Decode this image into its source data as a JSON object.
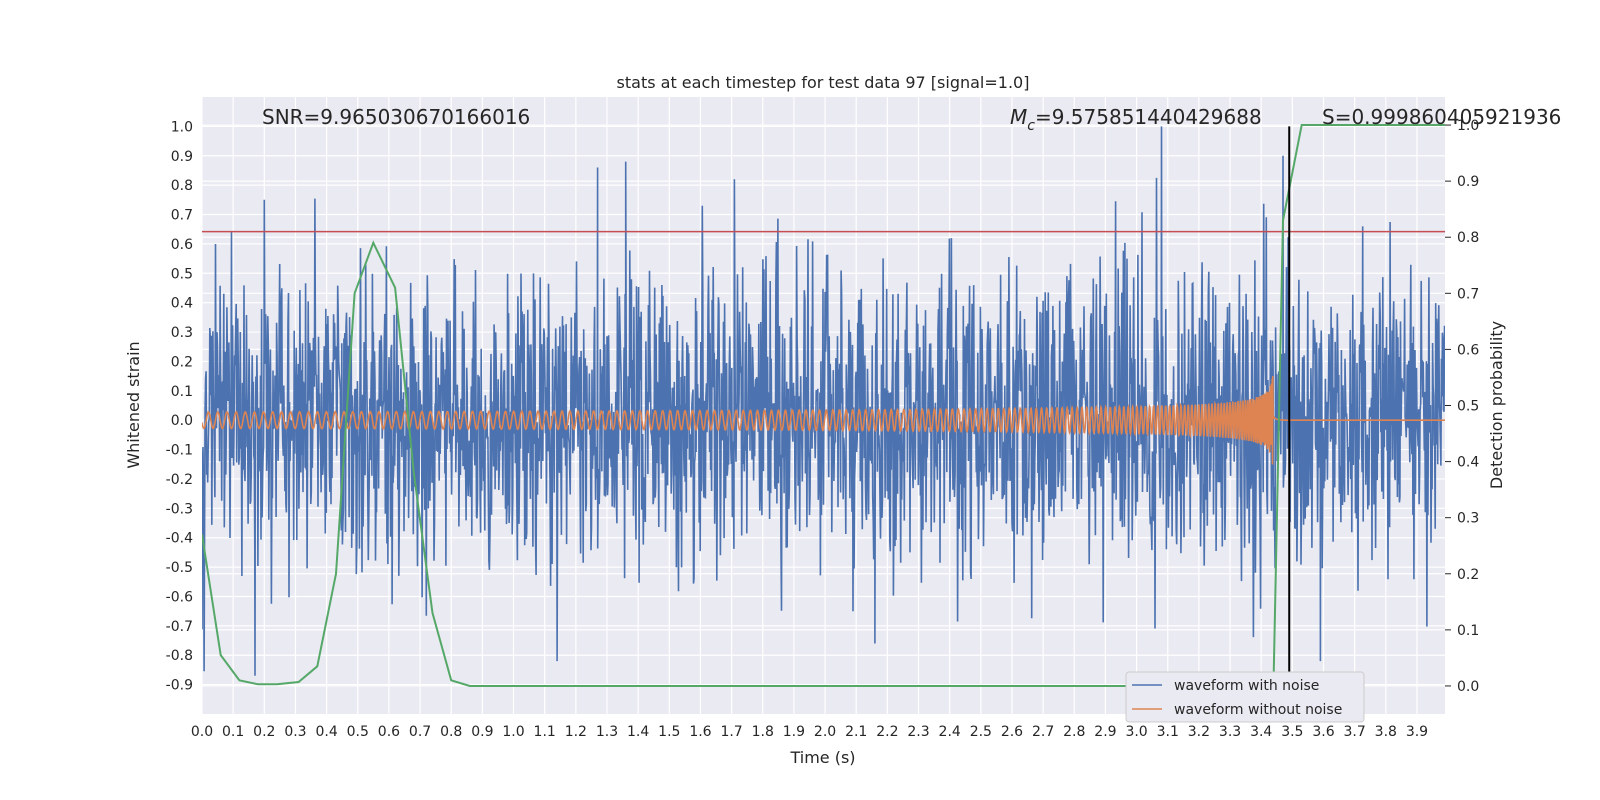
{
  "chart_data": {
    "type": "line",
    "title": "stats at each timestep for test data 97 [signal=1.0]",
    "xlabel": "Time (s)",
    "ylabel": "Whitened strain",
    "y2label": "Detection probability",
    "xlim": [
      0.0,
      3.99
    ],
    "ylim": [
      -1.0,
      1.1
    ],
    "y2lim": [
      -0.05,
      1.05
    ],
    "xticks": [
      "0.0",
      "0.1",
      "0.2",
      "0.3",
      "0.4",
      "0.5",
      "0.6",
      "0.7",
      "0.8",
      "0.9",
      "1.0",
      "1.1",
      "1.2",
      "1.3",
      "1.4",
      "1.5",
      "1.6",
      "1.7",
      "1.8",
      "1.9",
      "2.0",
      "2.1",
      "2.2",
      "2.3",
      "2.4",
      "2.5",
      "2.6",
      "2.7",
      "2.8",
      "2.9",
      "3.0",
      "3.1",
      "3.2",
      "3.3",
      "3.4",
      "3.5",
      "3.6",
      "3.7",
      "3.8",
      "3.9"
    ],
    "yticks": [
      "1.0",
      "0.9",
      "0.8",
      "0.7",
      "0.6",
      "0.5",
      "0.4",
      "0.3",
      "0.2",
      "0.1",
      "0.0",
      "-0.1",
      "-0.2",
      "-0.3",
      "-0.4",
      "-0.5",
      "-0.6",
      "-0.7",
      "-0.8",
      "-0.9"
    ],
    "y2ticks": [
      "1.0",
      "0.9",
      "0.8",
      "0.7",
      "0.6",
      "0.5",
      "0.4",
      "0.3",
      "0.2",
      "0.1",
      "0.0"
    ],
    "grid": true,
    "legend_position": "bottom-right",
    "annotations": {
      "snr": "SNR=9.965030670166016",
      "mc_symbol": "M",
      "mc_sub": "c",
      "mc_value": "=9.575851440429688",
      "s": "S=0.99986040592193​6"
    },
    "threshold_line": {
      "y": 0.81,
      "color": "#c44e52"
    },
    "event_line": {
      "x": 3.49,
      "ymax": 1.0,
      "color": "#000000"
    },
    "series": [
      {
        "name": "waveform with noise",
        "color": "#4c72b0",
        "axis": "left",
        "description_kind": "noise",
        "amplitude_std": 0.28,
        "peaks": [
          {
            "x": 0.2,
            "y": 0.75
          },
          {
            "x": 1.27,
            "y": 0.86
          },
          {
            "x": 1.36,
            "y": 0.88
          },
          {
            "x": 3.08,
            "y": 1.0
          },
          {
            "x": 3.47,
            "y": 0.9
          },
          {
            "x": 0.17,
            "y": -0.87
          },
          {
            "x": 1.14,
            "y": -0.82
          },
          {
            "x": 3.59,
            "y": -0.82
          },
          {
            "x": 2.16,
            "y": -0.76
          }
        ]
      },
      {
        "name": "waveform without noise",
        "color": "#dd8452",
        "axis": "left",
        "chirp": {
          "t_merge": 3.44,
          "amp_start": 0.028,
          "amp_peak": 0.38,
          "cycles_per_0_1s_start": 2.0
        }
      },
      {
        "name": "detection_probability",
        "color": "#55a868",
        "axis": "right",
        "x": [
          0.0,
          0.06,
          0.12,
          0.18,
          0.24,
          0.31,
          0.37,
          0.43,
          0.49,
          0.55,
          0.62,
          0.68,
          0.74,
          0.8,
          0.86,
          0.92,
          3.4,
          3.44,
          3.47,
          3.53,
          3.59,
          3.65,
          3.99
        ],
        "y": [
          0.27,
          0.055,
          0.01,
          0.003,
          0.003,
          0.007,
          0.035,
          0.2,
          0.7,
          0.79,
          0.71,
          0.38,
          0.13,
          0.01,
          0.0,
          0.0,
          0.0,
          0.02,
          0.83,
          1.0,
          1.0,
          1.0,
          1.0
        ]
      }
    ]
  }
}
